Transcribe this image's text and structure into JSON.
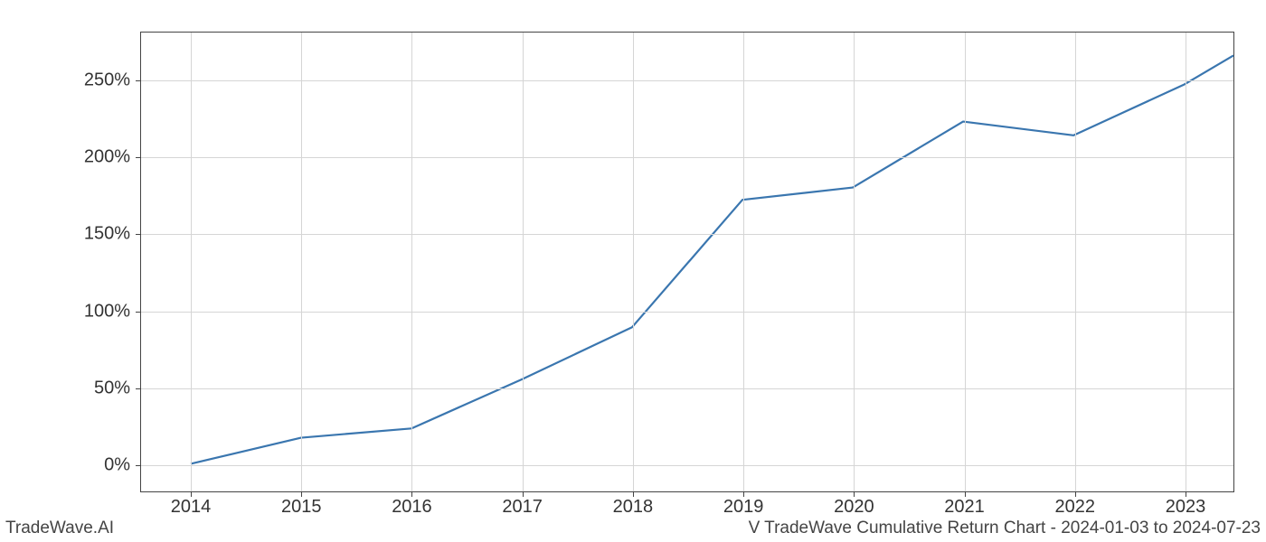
{
  "chart": {
    "type": "line",
    "background_color": "#ffffff",
    "grid_color": "#d5d5d5",
    "border_color": "#444444",
    "line_color": "#3a76af",
    "line_width": 2.2,
    "label_color": "#333333",
    "tick_fontsize": 20,
    "x": {
      "ticks": [
        2014,
        2015,
        2016,
        2017,
        2018,
        2019,
        2020,
        2021,
        2022,
        2023
      ],
      "lim": [
        2013.55,
        2023.45
      ]
    },
    "y": {
      "ticks": [
        0,
        50,
        100,
        150,
        200,
        250
      ],
      "tick_suffix": "%",
      "lim": [
        -18,
        281
      ]
    },
    "series": [
      {
        "x": [
          2014,
          2015,
          2016,
          2017,
          2018,
          2019,
          2020,
          2021,
          2022,
          2023,
          2023.45
        ],
        "y": [
          0,
          17,
          23,
          55,
          89,
          172,
          180,
          223,
          214,
          247,
          266
        ]
      }
    ]
  },
  "footer": {
    "left": "TradeWave.AI",
    "right": "V TradeWave Cumulative Return Chart - 2024-01-03 to 2024-07-23"
  }
}
